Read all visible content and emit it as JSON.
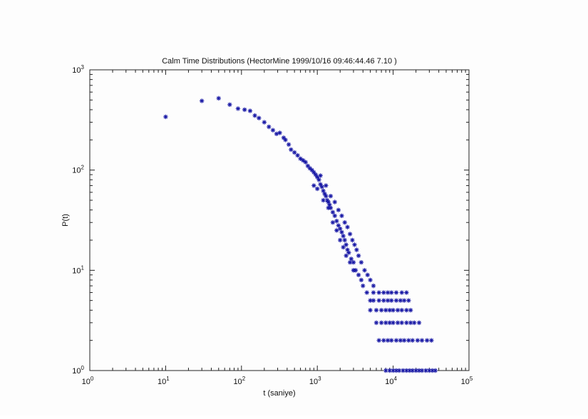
{
  "chart_data": {
    "type": "scatter",
    "title": "Calm Time Distributions (HectorMine 1999/10/16 09:46:44.46    7.10  )",
    "xlabel": "t (saniye)",
    "ylabel": "P(t)",
    "xscale": "log",
    "yscale": "log",
    "xlim": [
      1,
      100000
    ],
    "ylim": [
      1,
      1000
    ],
    "xticks": [
      {
        "base": "10",
        "exp": "0"
      },
      {
        "base": "10",
        "exp": "1"
      },
      {
        "base": "10",
        "exp": "2"
      },
      {
        "base": "10",
        "exp": "3"
      },
      {
        "base": "10",
        "exp": "4"
      },
      {
        "base": "10",
        "exp": "5"
      }
    ],
    "yticks": [
      {
        "base": "10",
        "exp": "0"
      },
      {
        "base": "10",
        "exp": "1"
      },
      {
        "base": "10",
        "exp": "2"
      },
      {
        "base": "10",
        "exp": "3"
      }
    ],
    "grid": false,
    "marker": "*",
    "marker_color": "#1a1aa6",
    "points": [
      [
        10,
        340
      ],
      [
        30,
        490
      ],
      [
        50,
        520
      ],
      [
        70,
        450
      ],
      [
        90,
        410
      ],
      [
        110,
        400
      ],
      [
        130,
        390
      ],
      [
        150,
        350
      ],
      [
        170,
        330
      ],
      [
        200,
        300
      ],
      [
        230,
        270
      ],
      [
        260,
        250
      ],
      [
        290,
        230
      ],
      [
        320,
        235
      ],
      [
        360,
        210
      ],
      [
        380,
        200
      ],
      [
        420,
        180
      ],
      [
        450,
        160
      ],
      [
        500,
        150
      ],
      [
        550,
        140
      ],
      [
        600,
        130
      ],
      [
        650,
        125
      ],
      [
        700,
        120
      ],
      [
        750,
        110
      ],
      [
        800,
        104
      ],
      [
        850,
        100
      ],
      [
        900,
        95
      ],
      [
        950,
        90
      ],
      [
        1000,
        85
      ],
      [
        1050,
        80
      ],
      [
        1100,
        72
      ],
      [
        1150,
        68
      ],
      [
        1200,
        62
      ],
      [
        1250,
        58
      ],
      [
        1300,
        55
      ],
      [
        1350,
        50
      ],
      [
        1400,
        48
      ],
      [
        1450,
        45
      ],
      [
        1500,
        42
      ],
      [
        1600,
        38
      ],
      [
        1700,
        35
      ],
      [
        1800,
        31
      ],
      [
        1900,
        28
      ],
      [
        2000,
        26
      ],
      [
        2100,
        24
      ],
      [
        2200,
        22
      ],
      [
        2300,
        20
      ],
      [
        2400,
        18
      ],
      [
        2500,
        16
      ],
      [
        2600,
        15
      ],
      [
        2800,
        13
      ],
      [
        3000,
        12
      ],
      [
        3200,
        10
      ],
      [
        3500,
        9
      ],
      [
        3800,
        8
      ],
      [
        4000,
        7
      ],
      [
        4500,
        6
      ],
      [
        5000,
        5
      ],
      [
        1100,
        88
      ],
      [
        1300,
        70
      ],
      [
        1500,
        55
      ],
      [
        1700,
        48
      ],
      [
        1900,
        40
      ],
      [
        2100,
        35
      ],
      [
        2300,
        30
      ],
      [
        2500,
        27
      ],
      [
        2700,
        23
      ],
      [
        2900,
        20
      ],
      [
        3100,
        18
      ],
      [
        3300,
        16
      ],
      [
        3500,
        14
      ],
      [
        3800,
        12
      ],
      [
        4200,
        10
      ],
      [
        4600,
        9
      ],
      [
        5000,
        8
      ],
      [
        5500,
        7
      ],
      [
        900,
        70
      ],
      [
        1000,
        65
      ],
      [
        1200,
        50
      ],
      [
        1400,
        42
      ],
      [
        1600,
        30
      ],
      [
        1800,
        25
      ],
      [
        2000,
        20
      ],
      [
        2200,
        17
      ],
      [
        2400,
        14
      ],
      [
        2700,
        12
      ],
      [
        3000,
        10
      ],
      [
        5500,
        6
      ],
      [
        6500,
        6
      ],
      [
        7500,
        6
      ],
      [
        8500,
        6
      ],
      [
        9500,
        6
      ],
      [
        11000,
        6
      ],
      [
        13000,
        6
      ],
      [
        15000,
        6
      ],
      [
        5500,
        5
      ],
      [
        6500,
        5
      ],
      [
        7500,
        5
      ],
      [
        8500,
        5
      ],
      [
        9500,
        5
      ],
      [
        11000,
        5
      ],
      [
        12500,
        5
      ],
      [
        14000,
        5
      ],
      [
        16000,
        5
      ],
      [
        5000,
        4
      ],
      [
        6000,
        4
      ],
      [
        7000,
        4
      ],
      [
        8000,
        4
      ],
      [
        9000,
        4
      ],
      [
        10000,
        4
      ],
      [
        11500,
        4
      ],
      [
        13000,
        4
      ],
      [
        15000,
        4
      ],
      [
        17000,
        4
      ],
      [
        6000,
        3
      ],
      [
        7000,
        3
      ],
      [
        8000,
        3
      ],
      [
        9000,
        3
      ],
      [
        10000,
        3
      ],
      [
        11500,
        3
      ],
      [
        13000,
        3
      ],
      [
        15000,
        3
      ],
      [
        17000,
        3
      ],
      [
        19000,
        3
      ],
      [
        22000,
        3
      ],
      [
        6500,
        2
      ],
      [
        7500,
        2
      ],
      [
        8500,
        2
      ],
      [
        9500,
        2
      ],
      [
        11000,
        2
      ],
      [
        12500,
        2
      ],
      [
        14000,
        2
      ],
      [
        16000,
        2
      ],
      [
        18000,
        2
      ],
      [
        21000,
        2
      ],
      [
        24000,
        2
      ],
      [
        28000,
        2
      ],
      [
        32000,
        2
      ],
      [
        8000,
        1
      ],
      [
        9000,
        1
      ],
      [
        10000,
        1
      ],
      [
        11000,
        1
      ],
      [
        12000,
        1
      ],
      [
        13500,
        1
      ],
      [
        15000,
        1
      ],
      [
        16500,
        1
      ],
      [
        18000,
        1
      ],
      [
        20000,
        1
      ],
      [
        22000,
        1
      ],
      [
        24000,
        1
      ],
      [
        27000,
        1
      ],
      [
        30000,
        1
      ],
      [
        33000,
        1
      ],
      [
        36000,
        1
      ]
    ]
  }
}
